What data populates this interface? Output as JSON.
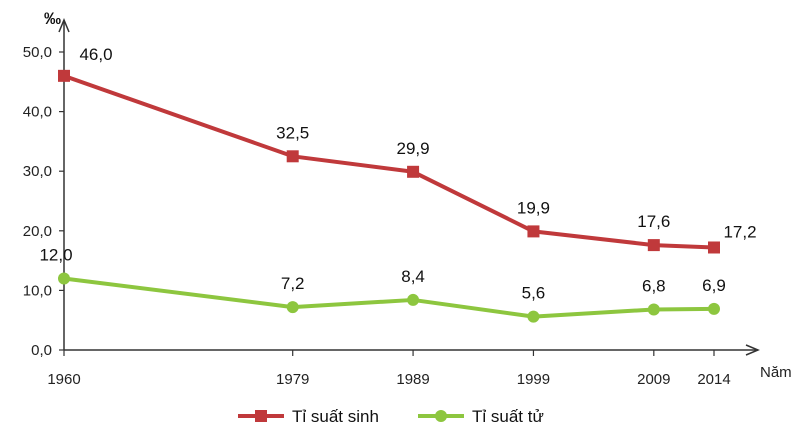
{
  "chart_data": {
    "type": "line",
    "x": [
      1960,
      1979,
      1989,
      1999,
      2009,
      2014
    ],
    "x_tick_labels": [
      "1960",
      "1979",
      "1989",
      "1999",
      "2009",
      "2014"
    ],
    "y_ticks": [
      "0,0",
      "10,0",
      "20,0",
      "30,0",
      "40,0",
      "50,0"
    ],
    "ylim": [
      0,
      50
    ],
    "xlim": [
      1960,
      2014
    ],
    "ylabel": "‰",
    "xlabel": "Năm",
    "grid": false,
    "legend_position": "bottom",
    "series": [
      {
        "name": "Tỉ suất sinh",
        "color": "#c0393b",
        "marker": "square",
        "values": [
          46.0,
          32.5,
          29.9,
          19.9,
          17.6,
          17.2
        ],
        "labels": [
          "46,0",
          "32,5",
          "29,9",
          "19,9",
          "17,6",
          "17,2"
        ]
      },
      {
        "name": "Tỉ suất tử",
        "color": "#8dc63f",
        "marker": "circle",
        "values": [
          12.0,
          7.2,
          8.4,
          5.6,
          6.8,
          6.9
        ],
        "labels": [
          "12,0",
          "7,2",
          "8,4",
          "5,6",
          "6,8",
          "6,9"
        ]
      }
    ]
  }
}
